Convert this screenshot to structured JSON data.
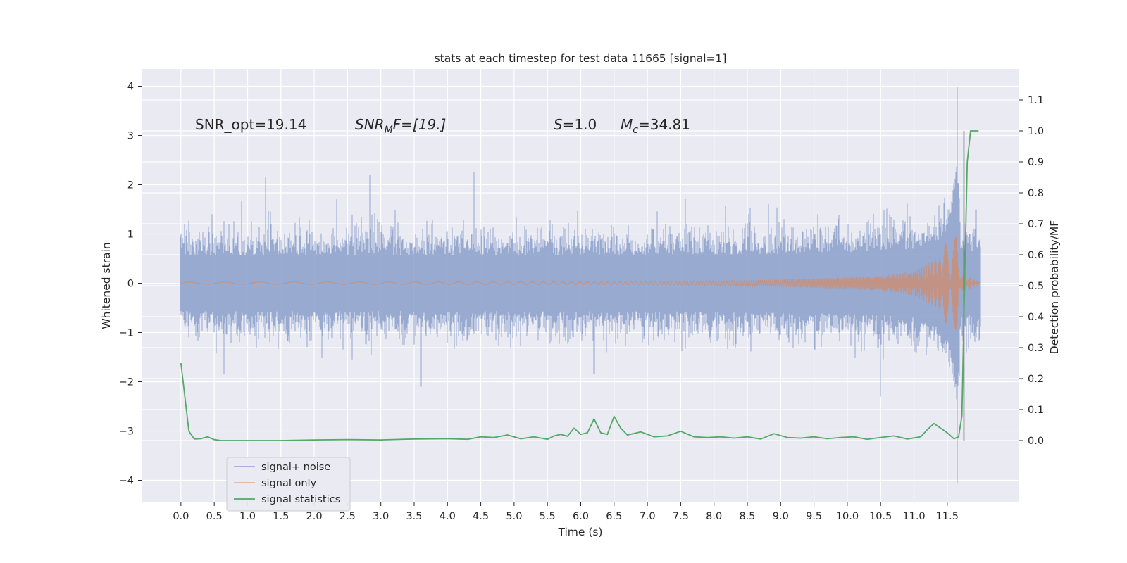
{
  "chart_data": {
    "type": "line",
    "title": "stats at each timestep for test data 11665 [signal=1]",
    "xlabel": "Time (s)",
    "ylabel": "Whitened strain",
    "ylabel_right": "Detection probability/MF",
    "xlim": [
      -0.58,
      12.58
    ],
    "ylim": [
      -4.45,
      4.35
    ],
    "ylim_right": [
      -0.2,
      1.2
    ],
    "grid": true,
    "legend_position": "lower-left",
    "x_ticks": [
      "0.0",
      "0.5",
      "1.0",
      "1.5",
      "2.0",
      "2.5",
      "3.0",
      "3.5",
      "4.0",
      "4.5",
      "5.0",
      "5.5",
      "6.0",
      "6.5",
      "7.0",
      "7.5",
      "8.0",
      "8.5",
      "9.0",
      "9.5",
      "10.0",
      "10.5",
      "11.0",
      "11.5"
    ],
    "y_ticks": [
      "4",
      "3",
      "2",
      "1",
      "0",
      "−1",
      "−2",
      "−3",
      "−4"
    ],
    "y_ticks_values": [
      4,
      3,
      2,
      1,
      0,
      -1,
      -2,
      -3,
      -4
    ],
    "y_right_ticks": [
      "1.1",
      "1.0",
      "0.9",
      "0.8",
      "0.7",
      "0.6",
      "0.5",
      "0.4",
      "0.3",
      "0.2",
      "0.1",
      "0.0"
    ],
    "y_right_ticks_values": [
      1.1,
      1.0,
      0.9,
      0.8,
      0.7,
      0.6,
      0.5,
      0.4,
      0.3,
      0.2,
      0.1,
      0.0
    ],
    "annotations": {
      "snr_opt": "SNR_opt=19.14",
      "snr_mf_base": "SNR",
      "snr_mf_sub": "M",
      "snr_mf_rest": "F=[19.]",
      "s_var": "S",
      "s_rest": "=1.0",
      "mc_var": "M",
      "mc_sub": "c",
      "mc_rest": "=34.81"
    },
    "series": [
      {
        "name": "signal+ noise",
        "color": "#8fa3cc",
        "x_range": [
          0.0,
          11.99
        ],
        "envelope_typical": [
          -1.3,
          1.3
        ],
        "peaks": [
          {
            "x": 0.05,
            "y": 1.2
          },
          {
            "x": 1.27,
            "y": 2.15
          },
          {
            "x": 2.83,
            "y": 2.2
          },
          {
            "x": 4.4,
            "y": 2.25
          },
          {
            "x": 3.6,
            "y": -2.1
          },
          {
            "x": 0.65,
            "y": -1.85
          },
          {
            "x": 6.2,
            "y": -1.85
          },
          {
            "x": 10.5,
            "y": -2.3
          },
          {
            "x": 11.65,
            "y": 3.98
          },
          {
            "x": 11.65,
            "y": -4.07
          },
          {
            "x": 11.93,
            "y": 1.5
          }
        ]
      },
      {
        "name": "signal only",
        "color": "#dd8452",
        "x_range": [
          0.0,
          11.99
        ],
        "envelope": [
          {
            "x": 0.0,
            "amp": 0.02
          },
          {
            "x": 7.0,
            "amp": 0.03
          },
          {
            "x": 9.0,
            "amp": 0.07
          },
          {
            "x": 10.5,
            "amp": 0.15
          },
          {
            "x": 11.0,
            "amp": 0.25
          },
          {
            "x": 11.4,
            "amp": 0.55
          },
          {
            "x": 11.55,
            "amp": 1.1
          },
          {
            "x": 11.65,
            "amp": 2.7
          },
          {
            "x": 11.7,
            "amp": 0.2
          },
          {
            "x": 11.99,
            "amp": 0.02
          }
        ]
      },
      {
        "name": "signal statistics",
        "color": "#55a868",
        "axis": "right",
        "x": [
          0.0,
          0.12,
          0.2,
          0.3,
          0.4,
          0.5,
          0.6,
          0.8,
          1.0,
          1.5,
          2.0,
          2.5,
          3.0,
          3.5,
          4.0,
          4.3,
          4.5,
          4.7,
          4.9,
          5.1,
          5.3,
          5.5,
          5.6,
          5.7,
          5.8,
          5.9,
          6.0,
          6.1,
          6.2,
          6.3,
          6.4,
          6.5,
          6.6,
          6.7,
          6.9,
          7.1,
          7.3,
          7.5,
          7.7,
          7.9,
          8.1,
          8.3,
          8.5,
          8.7,
          8.9,
          9.1,
          9.3,
          9.5,
          9.7,
          9.9,
          10.1,
          10.3,
          10.5,
          10.7,
          10.9,
          11.1,
          11.2,
          11.3,
          11.4,
          11.5,
          11.6,
          11.67,
          11.72,
          11.76,
          11.8,
          11.85,
          11.9,
          11.97
        ],
        "y": [
          0.25,
          0.03,
          0.005,
          0.006,
          0.012,
          0.003,
          0.0,
          0.0,
          0.0,
          0.0,
          0.002,
          0.003,
          0.002,
          0.005,
          0.006,
          0.004,
          0.012,
          0.01,
          0.018,
          0.006,
          0.012,
          0.004,
          0.015,
          0.02,
          0.014,
          0.04,
          0.02,
          0.025,
          0.07,
          0.025,
          0.02,
          0.078,
          0.04,
          0.018,
          0.028,
          0.012,
          0.015,
          0.03,
          0.012,
          0.01,
          0.012,
          0.008,
          0.012,
          0.005,
          0.022,
          0.01,
          0.008,
          0.012,
          0.006,
          0.01,
          0.012,
          0.004,
          0.01,
          0.015,
          0.005,
          0.012,
          0.035,
          0.055,
          0.04,
          0.025,
          0.006,
          0.012,
          0.08,
          0.5,
          0.9,
          1.0,
          1.0,
          1.0
        ]
      }
    ],
    "marker_line": {
      "x": 11.75,
      "color": "#555555"
    }
  }
}
